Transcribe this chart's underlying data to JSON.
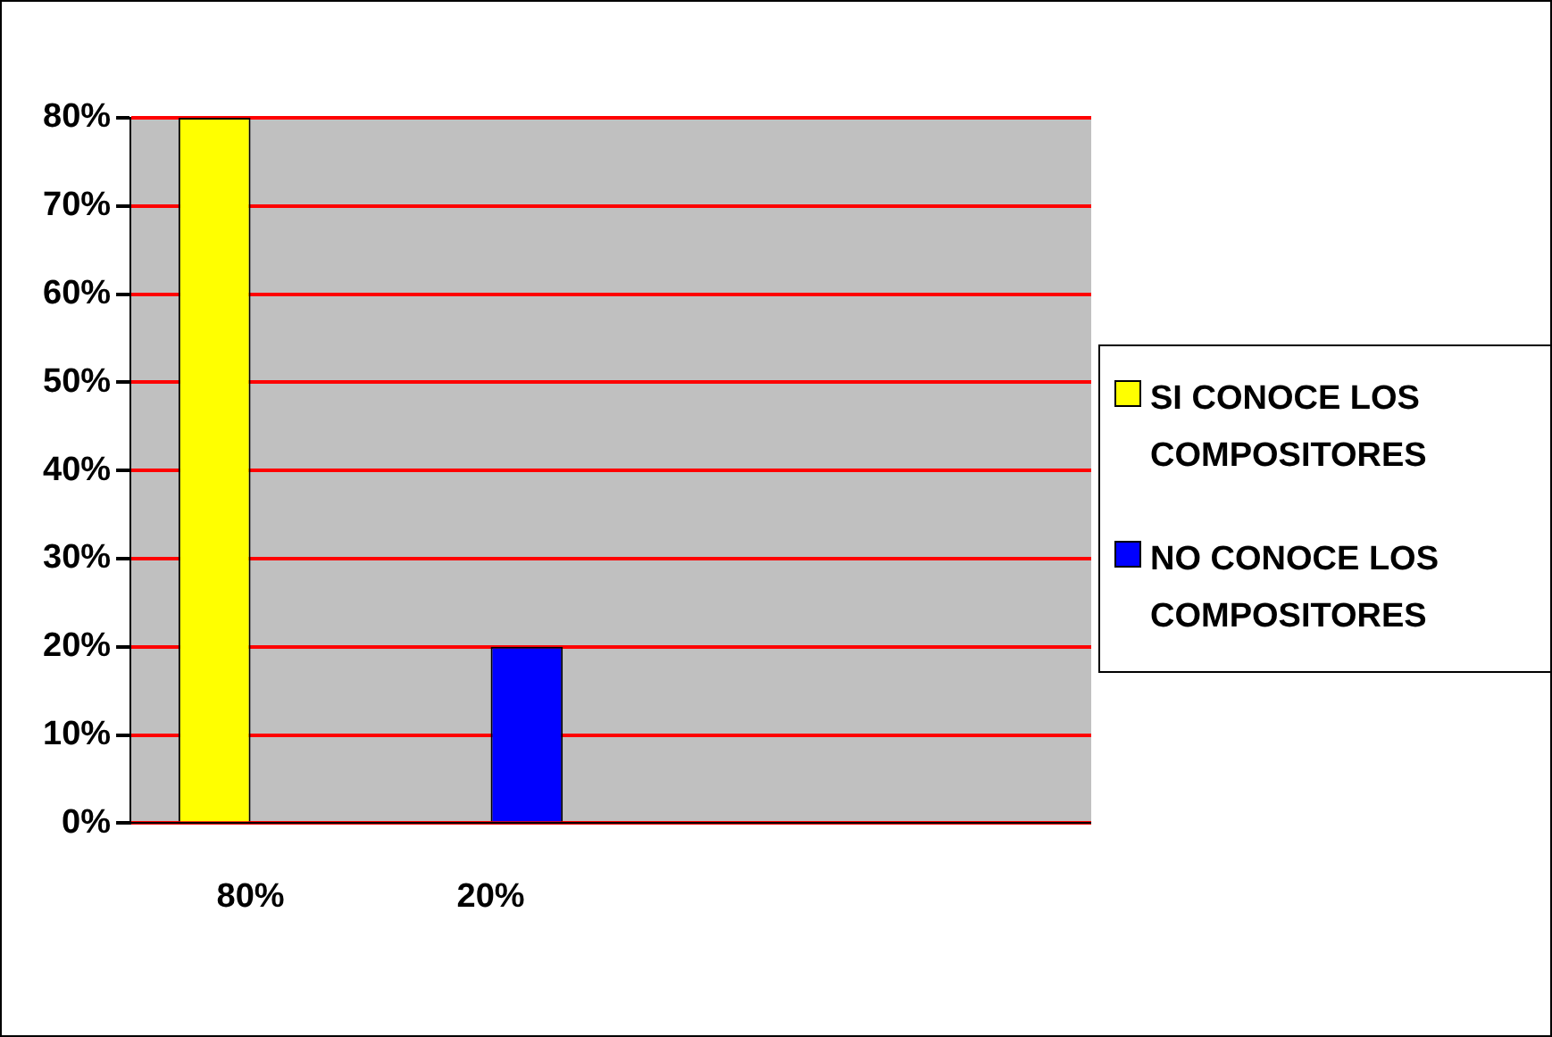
{
  "chart_data": {
    "type": "bar",
    "categories": [
      "80%",
      "20%",
      null,
      null
    ],
    "series": [
      {
        "name": "SI CONOCE LOS COMPOSITORES",
        "color": "#ffff00",
        "values": [
          80,
          null,
          null,
          null
        ]
      },
      {
        "name": "NO CONOCE LOS COMPOSITORES",
        "color": "#0000ff",
        "values": [
          null,
          20,
          null,
          null
        ]
      }
    ],
    "ylim": [
      0,
      80
    ],
    "yticks": [
      {
        "value": 0,
        "label": "0%"
      },
      {
        "value": 10,
        "label": "10%"
      },
      {
        "value": 20,
        "label": "20%"
      },
      {
        "value": 30,
        "label": "30%"
      },
      {
        "value": 40,
        "label": "40%"
      },
      {
        "value": 50,
        "label": "50%"
      },
      {
        "value": 60,
        "label": "60%"
      },
      {
        "value": 70,
        "label": "70%"
      },
      {
        "value": 80,
        "label": "80%"
      }
    ],
    "grid": "y",
    "legend": "right"
  }
}
